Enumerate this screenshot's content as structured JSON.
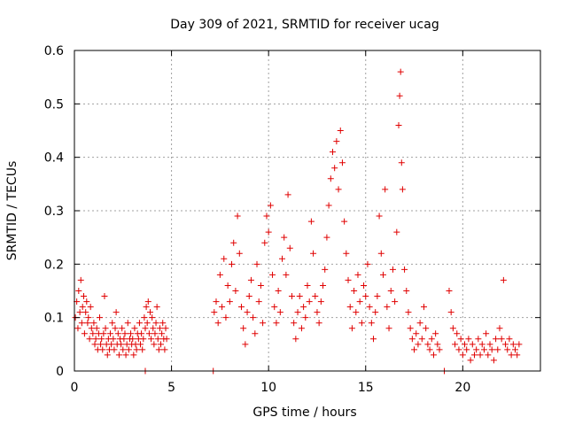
{
  "chart_data": {
    "type": "scatter",
    "title": "Day 309 of 2021, SRMTID for receiver ucag",
    "xlabel": "GPS time / hours",
    "ylabel": "SRMTID / TECUs",
    "xlim": [
      0,
      24
    ],
    "ylim": [
      0,
      0.6
    ],
    "xticks": [
      0,
      5,
      10,
      15,
      20
    ],
    "xtick_labels": [
      "0",
      "5",
      "10",
      "15",
      "20"
    ],
    "yticks": [
      0,
      0.1,
      0.2,
      0.3,
      0.4,
      0.5,
      0.6
    ],
    "ytick_labels": [
      "0",
      "0.1",
      "0.2",
      "0.3",
      "0.4",
      "0.5",
      "0.6"
    ],
    "grid": true,
    "marker": "plus",
    "color": "#e00000",
    "series": [
      {
        "name": "SRMTID",
        "points": [
          [
            0.05,
            0.1
          ],
          [
            0.12,
            0.13
          ],
          [
            0.18,
            0.08
          ],
          [
            0.22,
            0.15
          ],
          [
            0.28,
            0.11
          ],
          [
            0.33,
            0.17
          ],
          [
            0.38,
            0.09
          ],
          [
            0.42,
            0.12
          ],
          [
            0.48,
            0.14
          ],
          [
            0.52,
            0.07
          ],
          [
            0.58,
            0.11
          ],
          [
            0.63,
            0.13
          ],
          [
            0.68,
            0.09
          ],
          [
            0.72,
            0.1
          ],
          [
            0.78,
            0.06
          ],
          [
            0.83,
            0.12
          ],
          [
            0.88,
            0.08
          ],
          [
            0.95,
            0.07
          ],
          [
            1.0,
            0.09
          ],
          [
            1.05,
            0.05
          ],
          [
            1.1,
            0.06
          ],
          [
            1.15,
            0.08
          ],
          [
            1.2,
            0.04
          ],
          [
            1.25,
            0.07
          ],
          [
            1.3,
            0.1
          ],
          [
            1.35,
            0.05
          ],
          [
            1.4,
            0.06
          ],
          [
            1.45,
            0.04
          ],
          [
            1.5,
            0.07
          ],
          [
            1.55,
            0.14
          ],
          [
            1.6,
            0.08
          ],
          [
            1.65,
            0.05
          ],
          [
            1.7,
            0.03
          ],
          [
            1.75,
            0.06
          ],
          [
            1.8,
            0.04
          ],
          [
            1.85,
            0.07
          ],
          [
            1.9,
            0.05
          ],
          [
            1.95,
            0.09
          ],
          [
            2.0,
            0.06
          ],
          [
            2.05,
            0.04
          ],
          [
            2.1,
            0.08
          ],
          [
            2.15,
            0.11
          ],
          [
            2.2,
            0.05
          ],
          [
            2.25,
            0.07
          ],
          [
            2.3,
            0.03
          ],
          [
            2.35,
            0.06
          ],
          [
            2.4,
            0.05
          ],
          [
            2.45,
            0.08
          ],
          [
            2.5,
            0.04
          ],
          [
            2.55,
            0.06
          ],
          [
            2.6,
            0.07
          ],
          [
            2.65,
            0.03
          ],
          [
            2.7,
            0.05
          ],
          [
            2.75,
            0.09
          ],
          [
            2.8,
            0.04
          ],
          [
            2.85,
            0.06
          ],
          [
            2.9,
            0.07
          ],
          [
            2.95,
            0.05
          ],
          [
            3.0,
            0.06
          ],
          [
            3.05,
            0.03
          ],
          [
            3.1,
            0.08
          ],
          [
            3.15,
            0.05
          ],
          [
            3.2,
            0.04
          ],
          [
            3.25,
            0.07
          ],
          [
            3.3,
            0.06
          ],
          [
            3.35,
            0.09
          ],
          [
            3.4,
            0.05
          ],
          [
            3.45,
            0.07
          ],
          [
            3.5,
            0.04
          ],
          [
            3.55,
            0.06
          ],
          [
            3.6,
            0.1
          ],
          [
            3.65,
            0.08
          ],
          [
            3.7,
            0.12
          ],
          [
            3.75,
            0.09
          ],
          [
            3.8,
            0.13
          ],
          [
            3.85,
            0.07
          ],
          [
            3.9,
            0.11
          ],
          [
            3.95,
            0.06
          ],
          [
            4.0,
            0.1
          ],
          [
            4.05,
            0.08
          ],
          [
            4.1,
            0.05
          ],
          [
            4.15,
            0.07
          ],
          [
            4.2,
            0.09
          ],
          [
            4.25,
            0.12
          ],
          [
            4.3,
            0.06
          ],
          [
            4.35,
            0.04
          ],
          [
            4.4,
            0.08
          ],
          [
            4.45,
            0.05
          ],
          [
            4.5,
            0.07
          ],
          [
            4.55,
            0.09
          ],
          [
            4.6,
            0.06
          ],
          [
            4.65,
            0.04
          ],
          [
            4.7,
            0.08
          ],
          [
            4.75,
            0.06
          ],
          [
            3.65,
            0.0
          ],
          [
            7.15,
            0.0
          ],
          [
            19.05,
            0.0
          ],
          [
            7.2,
            0.11
          ],
          [
            7.3,
            0.13
          ],
          [
            7.4,
            0.09
          ],
          [
            7.5,
            0.18
          ],
          [
            7.6,
            0.12
          ],
          [
            7.7,
            0.21
          ],
          [
            7.8,
            0.1
          ],
          [
            7.9,
            0.16
          ],
          [
            8.0,
            0.13
          ],
          [
            8.1,
            0.2
          ],
          [
            8.2,
            0.24
          ],
          [
            8.3,
            0.15
          ],
          [
            8.4,
            0.29
          ],
          [
            8.5,
            0.22
          ],
          [
            8.6,
            0.12
          ],
          [
            8.7,
            0.08
          ],
          [
            8.8,
            0.05
          ],
          [
            8.9,
            0.11
          ],
          [
            9.0,
            0.14
          ],
          [
            9.1,
            0.17
          ],
          [
            9.2,
            0.1
          ],
          [
            9.3,
            0.07
          ],
          [
            9.4,
            0.2
          ],
          [
            9.5,
            0.13
          ],
          [
            9.6,
            0.16
          ],
          [
            9.7,
            0.09
          ],
          [
            9.8,
            0.24
          ],
          [
            9.9,
            0.29
          ],
          [
            10.0,
            0.26
          ],
          [
            10.1,
            0.31
          ],
          [
            10.2,
            0.18
          ],
          [
            10.3,
            0.12
          ],
          [
            10.4,
            0.09
          ],
          [
            10.5,
            0.15
          ],
          [
            10.6,
            0.11
          ],
          [
            10.7,
            0.21
          ],
          [
            10.8,
            0.25
          ],
          [
            10.9,
            0.18
          ],
          [
            11.0,
            0.33
          ],
          [
            11.1,
            0.23
          ],
          [
            11.2,
            0.14
          ],
          [
            11.3,
            0.09
          ],
          [
            11.4,
            0.06
          ],
          [
            11.5,
            0.11
          ],
          [
            11.6,
            0.14
          ],
          [
            11.7,
            0.08
          ],
          [
            11.8,
            0.12
          ],
          [
            11.9,
            0.1
          ],
          [
            12.0,
            0.16
          ],
          [
            12.1,
            0.13
          ],
          [
            12.2,
            0.28
          ],
          [
            12.3,
            0.22
          ],
          [
            12.4,
            0.14
          ],
          [
            12.5,
            0.11
          ],
          [
            12.6,
            0.09
          ],
          [
            12.7,
            0.13
          ],
          [
            12.8,
            0.16
          ],
          [
            12.9,
            0.19
          ],
          [
            13.0,
            0.25
          ],
          [
            13.1,
            0.31
          ],
          [
            13.2,
            0.36
          ],
          [
            13.3,
            0.41
          ],
          [
            13.4,
            0.38
          ],
          [
            13.5,
            0.43
          ],
          [
            13.6,
            0.34
          ],
          [
            13.7,
            0.45
          ],
          [
            13.8,
            0.39
          ],
          [
            13.9,
            0.28
          ],
          [
            14.0,
            0.22
          ],
          [
            14.1,
            0.17
          ],
          [
            14.2,
            0.12
          ],
          [
            14.3,
            0.08
          ],
          [
            14.4,
            0.15
          ],
          [
            14.5,
            0.11
          ],
          [
            14.6,
            0.18
          ],
          [
            14.7,
            0.13
          ],
          [
            14.8,
            0.09
          ],
          [
            14.9,
            0.16
          ],
          [
            15.0,
            0.14
          ],
          [
            15.1,
            0.2
          ],
          [
            15.2,
            0.12
          ],
          [
            15.3,
            0.09
          ],
          [
            15.4,
            0.06
          ],
          [
            15.5,
            0.11
          ],
          [
            15.6,
            0.14
          ],
          [
            15.7,
            0.29
          ],
          [
            15.8,
            0.22
          ],
          [
            15.9,
            0.18
          ],
          [
            16.0,
            0.34
          ],
          [
            16.1,
            0.12
          ],
          [
            16.2,
            0.08
          ],
          [
            16.3,
            0.15
          ],
          [
            16.4,
            0.19
          ],
          [
            16.5,
            0.13
          ],
          [
            16.6,
            0.26
          ],
          [
            16.7,
            0.46
          ],
          [
            16.75,
            0.515
          ],
          [
            16.8,
            0.56
          ],
          [
            16.85,
            0.39
          ],
          [
            16.9,
            0.34
          ],
          [
            17.0,
            0.19
          ],
          [
            17.1,
            0.15
          ],
          [
            17.2,
            0.11
          ],
          [
            17.3,
            0.08
          ],
          [
            17.4,
            0.06
          ],
          [
            17.5,
            0.04
          ],
          [
            17.6,
            0.07
          ],
          [
            17.7,
            0.05
          ],
          [
            17.8,
            0.09
          ],
          [
            17.9,
            0.06
          ],
          [
            18.0,
            0.12
          ],
          [
            18.1,
            0.08
          ],
          [
            18.2,
            0.05
          ],
          [
            18.3,
            0.04
          ],
          [
            18.4,
            0.06
          ],
          [
            18.5,
            0.03
          ],
          [
            18.6,
            0.07
          ],
          [
            18.7,
            0.05
          ],
          [
            18.8,
            0.04
          ],
          [
            19.3,
            0.15
          ],
          [
            19.4,
            0.11
          ],
          [
            19.5,
            0.08
          ],
          [
            19.6,
            0.05
          ],
          [
            19.7,
            0.07
          ],
          [
            19.8,
            0.04
          ],
          [
            19.9,
            0.06
          ],
          [
            20.0,
            0.03
          ],
          [
            20.1,
            0.05
          ],
          [
            20.2,
            0.04
          ],
          [
            20.3,
            0.06
          ],
          [
            20.4,
            0.02
          ],
          [
            20.5,
            0.05
          ],
          [
            20.6,
            0.03
          ],
          [
            20.7,
            0.04
          ],
          [
            20.8,
            0.06
          ],
          [
            20.9,
            0.03
          ],
          [
            21.0,
            0.05
          ],
          [
            21.1,
            0.04
          ],
          [
            21.2,
            0.07
          ],
          [
            21.3,
            0.03
          ],
          [
            21.4,
            0.05
          ],
          [
            21.5,
            0.04
          ],
          [
            21.6,
            0.02
          ],
          [
            21.7,
            0.06
          ],
          [
            21.8,
            0.04
          ],
          [
            21.9,
            0.08
          ],
          [
            22.0,
            0.06
          ],
          [
            22.1,
            0.17
          ],
          [
            22.2,
            0.05
          ],
          [
            22.3,
            0.04
          ],
          [
            22.4,
            0.06
          ],
          [
            22.5,
            0.03
          ],
          [
            22.6,
            0.05
          ],
          [
            22.7,
            0.04
          ],
          [
            22.8,
            0.03
          ],
          [
            22.9,
            0.05
          ]
        ]
      }
    ]
  }
}
